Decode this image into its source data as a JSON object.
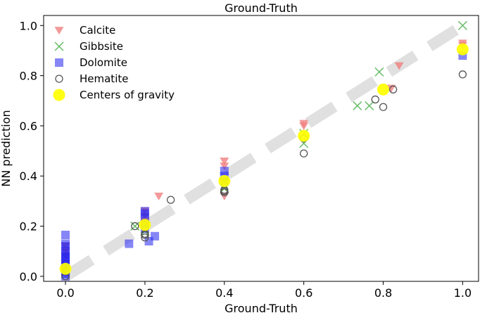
{
  "chart_data": {
    "type": "scatter",
    "title": "Ground-Truth",
    "xlabel": "Ground-Truth",
    "ylabel": "NN prediction",
    "xlim": [
      -0.055,
      1.04
    ],
    "ylim": [
      -0.02,
      1.04
    ],
    "xticks": [
      "0.0",
      "0.2",
      "0.4",
      "0.6",
      "0.8",
      "1.0"
    ],
    "yticks": [
      "0.0",
      "0.2",
      "0.4",
      "0.6",
      "0.8",
      "1.0"
    ],
    "xtick_values": [
      0,
      0.2,
      0.4,
      0.6,
      0.8,
      1.0
    ],
    "ytick_values": [
      0,
      0.2,
      0.4,
      0.6,
      0.8,
      1.0
    ],
    "grid": false,
    "legend_position": "top-left",
    "reference_line": {
      "style": "dashed",
      "color": "#e0e0e0",
      "from": [
        0,
        0
      ],
      "to": [
        1,
        1
      ]
    },
    "series": [
      {
        "name": "Calcite",
        "marker": "triangle-down",
        "color": "#f08080",
        "points": [
          [
            0.0,
            0.02
          ],
          [
            0.0,
            0.05
          ],
          [
            0.0,
            0.08
          ],
          [
            0.0,
            0.1
          ],
          [
            0.0,
            0.12
          ],
          [
            0.2,
            0.26
          ],
          [
            0.2,
            0.24
          ],
          [
            0.2,
            0.22
          ],
          [
            0.235,
            0.32
          ],
          [
            0.4,
            0.46
          ],
          [
            0.4,
            0.44
          ],
          [
            0.4,
            0.32
          ],
          [
            0.6,
            0.61
          ],
          [
            0.6,
            0.6
          ],
          [
            0.82,
            0.75
          ],
          [
            0.84,
            0.84
          ],
          [
            1.0,
            0.93
          ],
          [
            1.0,
            0.92
          ]
        ]
      },
      {
        "name": "Gibbsite",
        "marker": "x",
        "color": "#66bb66",
        "points": [
          [
            0.0,
            0.03
          ],
          [
            0.175,
            0.2
          ],
          [
            0.2,
            0.18
          ],
          [
            0.4,
            0.35
          ],
          [
            0.4,
            0.38
          ],
          [
            0.6,
            0.53
          ],
          [
            0.6,
            0.57
          ],
          [
            0.735,
            0.68
          ],
          [
            0.765,
            0.68
          ],
          [
            0.79,
            0.815
          ],
          [
            1.0,
            1.0
          ]
        ]
      },
      {
        "name": "Dolomite",
        "marker": "square",
        "color": "#2222ee",
        "points": [
          [
            0.0,
            0.0
          ],
          [
            0.0,
            0.01
          ],
          [
            0.0,
            0.02
          ],
          [
            0.0,
            0.03
          ],
          [
            0.0,
            0.04
          ],
          [
            0.0,
            0.05
          ],
          [
            0.0,
            0.06
          ],
          [
            0.0,
            0.07
          ],
          [
            0.0,
            0.08
          ],
          [
            0.0,
            0.09
          ],
          [
            0.0,
            0.1
          ],
          [
            0.0,
            0.12
          ],
          [
            0.0,
            0.13
          ],
          [
            0.0,
            0.165
          ],
          [
            0.16,
            0.13
          ],
          [
            0.2,
            0.26
          ],
          [
            0.2,
            0.25
          ],
          [
            0.2,
            0.23
          ],
          [
            0.2,
            0.21
          ],
          [
            0.2,
            0.19
          ],
          [
            0.21,
            0.14
          ],
          [
            0.225,
            0.16
          ],
          [
            0.4,
            0.42
          ],
          [
            0.4,
            0.4
          ],
          [
            0.4,
            0.38
          ],
          [
            1.0,
            0.88
          ]
        ]
      },
      {
        "name": "Hematite",
        "marker": "circle-open",
        "color": "#555555",
        "points": [
          [
            0.0,
            0.0
          ],
          [
            0.0,
            0.02
          ],
          [
            0.175,
            0.2
          ],
          [
            0.2,
            0.17
          ],
          [
            0.2,
            0.165
          ],
          [
            0.2,
            0.155
          ],
          [
            0.265,
            0.305
          ],
          [
            0.4,
            0.345
          ],
          [
            0.4,
            0.34
          ],
          [
            0.4,
            0.335
          ],
          [
            0.6,
            0.49
          ],
          [
            0.6,
            0.55
          ],
          [
            0.78,
            0.705
          ],
          [
            0.8,
            0.675
          ],
          [
            0.825,
            0.745
          ],
          [
            1.0,
            0.805
          ]
        ]
      },
      {
        "name": "Centers of gravity",
        "marker": "circle-filled",
        "color": "#ffff00",
        "points": [
          [
            0.0,
            0.03
          ],
          [
            0.2,
            0.205
          ],
          [
            0.4,
            0.38
          ],
          [
            0.6,
            0.56
          ],
          [
            0.8,
            0.745
          ],
          [
            1.0,
            0.905
          ]
        ]
      }
    ]
  }
}
